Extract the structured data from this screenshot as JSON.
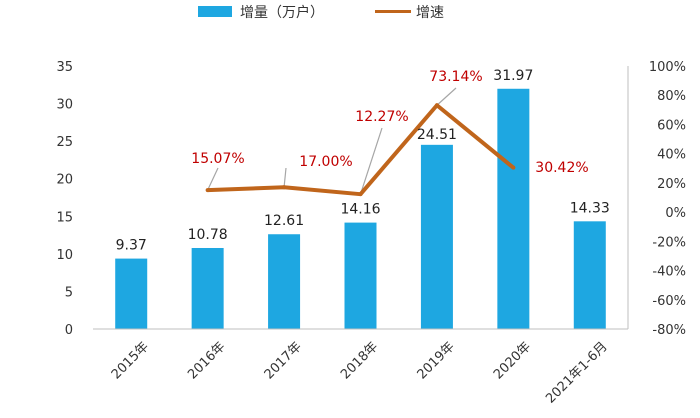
{
  "chart_data": {
    "type": "bar",
    "categories": [
      "2015年",
      "2016年",
      "2017年",
      "2018年",
      "2019年",
      "2020年",
      "2021年1-6月"
    ],
    "series": [
      {
        "name": "增量（万户）",
        "type": "bar",
        "axis": "left",
        "color": "#1ea7e1",
        "values": [
          9.37,
          10.78,
          12.61,
          14.16,
          24.51,
          31.97,
          14.33
        ],
        "labels": [
          "9.37",
          "10.78",
          "12.61",
          "14.16",
          "24.51",
          "31.97",
          "14.33"
        ]
      },
      {
        "name": "增速",
        "type": "line",
        "axis": "right",
        "color": "#c0651b",
        "values": [
          null,
          15.07,
          17.0,
          12.27,
          73.14,
          30.42,
          null
        ],
        "labels": [
          "",
          "15.07%",
          "17.00%",
          "12.27%",
          "73.14%",
          "30.42%",
          ""
        ]
      }
    ],
    "left_axis": {
      "ylim": [
        0,
        35
      ],
      "ticks": [
        "0",
        "5",
        "10",
        "15",
        "20",
        "25",
        "30",
        "35"
      ]
    },
    "right_axis": {
      "ylim": [
        -80,
        100
      ],
      "ticks": [
        "-80%",
        "-60%",
        "-40%",
        "-20%",
        "0%",
        "20%",
        "40%",
        "60%",
        "80%",
        "100%"
      ]
    },
    "legend_position": "top-center",
    "grid": false,
    "label_color": "#c00000"
  }
}
